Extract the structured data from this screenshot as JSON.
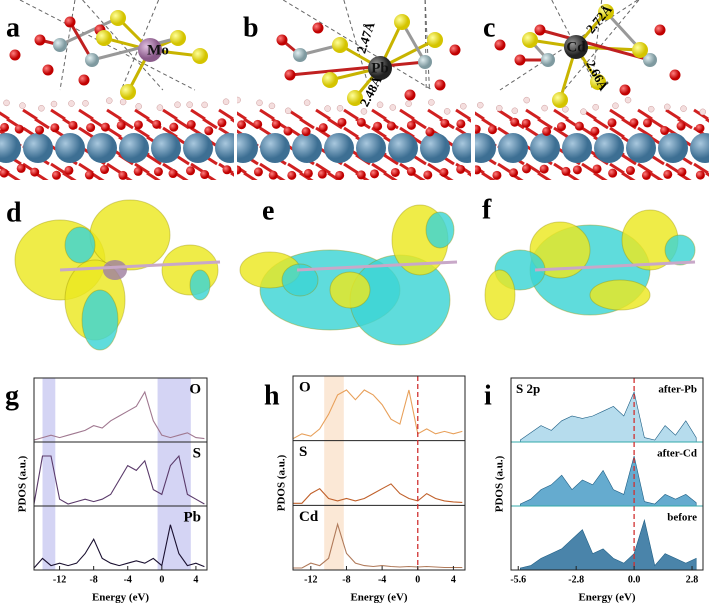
{
  "structures": [
    {
      "label": "a",
      "metal": "Mo"
    },
    {
      "label": "b",
      "metal": "Pb",
      "bonds": [
        "2.47Å",
        "2.48Å"
      ]
    },
    {
      "label": "c",
      "metal": "Cd",
      "bonds": [
        "2.72Å",
        "2.66Å"
      ]
    }
  ],
  "charge_density": [
    {
      "label": "d"
    },
    {
      "label": "e"
    },
    {
      "label": "f"
    }
  ],
  "chart_data": [
    {
      "type": "line",
      "panel_label": "g",
      "xlabel": "Energy (eV)",
      "ylabel": "PDOS (a.u.)",
      "label_side": "right",
      "x": [
        -15,
        -14,
        -13,
        -12,
        -11,
        -10,
        -9,
        -8,
        -7,
        -6,
        -5,
        -4,
        -3,
        -2,
        -1,
        0,
        1,
        2,
        3,
        4,
        5
      ],
      "xlim": [
        -15,
        5.3
      ],
      "xticks": [
        -12,
        -8,
        -4,
        0,
        4
      ],
      "ylim": [
        0,
        10
      ],
      "shaded": [
        {
          "range": [
            -14,
            -12.5
          ],
          "color": "#d4d4f4"
        },
        {
          "range": [
            -0.5,
            3.4
          ],
          "color": "#d4d4f4"
        }
      ],
      "series": [
        {
          "name": "O",
          "color": "#a07890",
          "values": [
            0,
            0.5,
            1,
            0.5,
            1,
            1.5,
            2,
            3,
            2.5,
            4,
            5,
            6,
            7,
            10,
            4,
            1,
            0.5,
            1,
            1.5,
            0.5,
            0.3
          ]
        },
        {
          "name": "S",
          "color": "#5a3a6a",
          "values": [
            0,
            10,
            10,
            1,
            0,
            0.5,
            1,
            0.5,
            1,
            2,
            5,
            8,
            7,
            9,
            3,
            2,
            8,
            10,
            2,
            1,
            0
          ]
        },
        {
          "name": "Pb",
          "color": "#1a1030",
          "values": [
            0,
            2,
            0.5,
            1,
            0.5,
            1,
            3,
            6,
            2,
            1,
            0.5,
            1,
            1.5,
            1,
            2,
            0.5,
            9,
            3,
            0.5,
            1,
            0.3
          ]
        }
      ]
    },
    {
      "type": "line",
      "panel_label": "h",
      "xlabel": "Energy (eV)",
      "ylabel": "PDOS (a.u.)",
      "label_side": "left",
      "x": [
        -14,
        -13,
        -12,
        -11,
        -10,
        -9,
        -8,
        -7,
        -6,
        -5,
        -4,
        -3,
        -2,
        -1,
        0,
        1,
        2,
        3,
        4,
        5
      ],
      "xlim": [
        -14,
        5.3
      ],
      "xticks": [
        -12,
        -8,
        -4,
        0,
        4
      ],
      "ylim": [
        0,
        10
      ],
      "fermi_line": 0,
      "shaded": [
        {
          "range": [
            -10.5,
            -8.3
          ],
          "color": "#fbe8d6"
        }
      ],
      "series": [
        {
          "name": "O",
          "color": "#e8a05a",
          "values": [
            0,
            1,
            0.5,
            2,
            5,
            9,
            10,
            8,
            10,
            9,
            7,
            4,
            3,
            10,
            1,
            2,
            1,
            1.5,
            1,
            1.5
          ]
        },
        {
          "name": "S",
          "color": "#c0602a",
          "values": [
            0,
            0,
            2,
            3,
            1,
            0.5,
            1,
            0.5,
            1,
            2,
            3,
            4,
            2,
            1,
            0.5,
            2,
            1,
            0.5,
            0.3,
            0.2
          ]
        },
        {
          "name": "Cd",
          "color": "#b07a5a",
          "values": [
            0,
            0,
            1,
            0.5,
            2,
            9,
            3,
            1,
            0.5,
            0.3,
            0.5,
            0.3,
            0.2,
            0.3,
            0.2,
            0.3,
            0.2,
            0.1,
            0.1,
            0.1
          ]
        }
      ]
    },
    {
      "type": "area",
      "panel_label": "i",
      "title": "S 2p",
      "xlabel": "Energy (eV)",
      "ylabel": "PDOS (a.u.)",
      "label_side": "right",
      "x": [
        -5.5,
        -5,
        -4.5,
        -4,
        -3.5,
        -3,
        -2.5,
        -2,
        -1.5,
        -1,
        -0.5,
        0,
        0.5,
        1,
        1.5,
        2,
        2.5,
        3
      ],
      "xlim": [
        -5.95,
        3.33
      ],
      "xticks": [
        -5.6,
        -2.8,
        {
          "value": 0,
          "label": "0.0"
        },
        2.8
      ],
      "ylim": [
        0,
        10
      ],
      "fermi_line": 0,
      "series": [
        {
          "name": "after-Pb",
          "color": "#a9d6ea",
          "values": [
            0,
            1.5,
            3,
            2,
            4,
            5,
            4.5,
            5,
            6,
            7,
            5,
            10,
            0.5,
            0,
            3,
            1,
            4,
            0.5
          ]
        },
        {
          "name": "after-Cd",
          "color": "#4a9cc7",
          "values": [
            0,
            1,
            3,
            4,
            6,
            3,
            5,
            4,
            7,
            3,
            2,
            10,
            0.5,
            0,
            2,
            1,
            2,
            0.3
          ]
        },
        {
          "name": "before",
          "color": "#2a6f9b",
          "values": [
            0,
            0.5,
            2,
            3,
            4,
            6,
            8,
            3,
            4,
            2,
            1,
            3,
            10,
            0.5,
            3,
            2,
            1,
            2
          ]
        }
      ]
    }
  ]
}
